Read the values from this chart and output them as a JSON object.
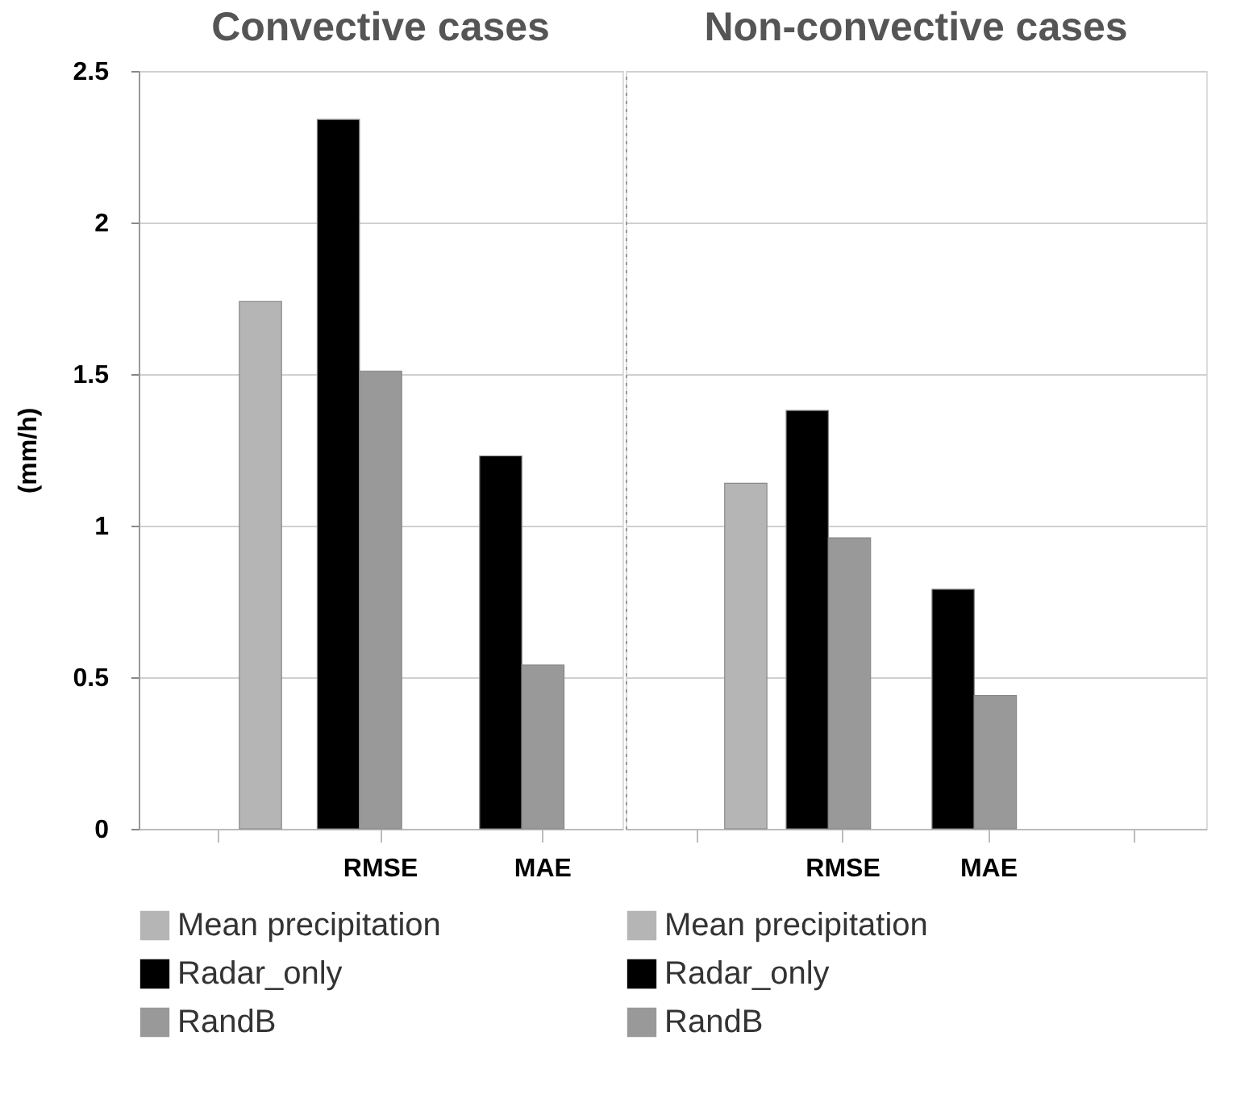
{
  "chart_data": [
    {
      "type": "bar",
      "title": "Convective cases",
      "ylabel": "(mm/h)",
      "categories": [
        null,
        "RMSE",
        "MAE"
      ],
      "series": [
        {
          "name": "Mean precipitation",
          "color": "#b5b5b5",
          "values": [
            1.74,
            null,
            null
          ]
        },
        {
          "name": "Radar_only",
          "color": "#000000",
          "values": [
            null,
            2.34,
            1.23
          ]
        },
        {
          "name": "RandB",
          "color": "#999999",
          "values": [
            null,
            1.51,
            0.54
          ]
        }
      ],
      "ylim": [
        0,
        2.5
      ],
      "yticks": [
        0,
        0.5,
        1,
        1.5,
        2,
        2.5
      ],
      "grid": "y",
      "legend": "bottom"
    },
    {
      "type": "bar",
      "title": "Non-convective cases",
      "categories": [
        null,
        "RMSE",
        "MAE",
        null
      ],
      "series": [
        {
          "name": "Mean precipitation",
          "color": "#b5b5b5",
          "values": [
            1.14,
            null,
            null,
            null
          ]
        },
        {
          "name": "Radar_only",
          "color": "#000000",
          "values": [
            null,
            1.38,
            0.79,
            null
          ]
        },
        {
          "name": "RandB",
          "color": "#999999",
          "values": [
            null,
            0.96,
            0.44,
            null
          ]
        }
      ],
      "ylim": [
        0,
        2.5
      ],
      "yticks": [
        0,
        0.5,
        1,
        1.5,
        2,
        2.5
      ],
      "grid": "y",
      "legend": "bottom",
      "tick_labels": "x"
    }
  ]
}
